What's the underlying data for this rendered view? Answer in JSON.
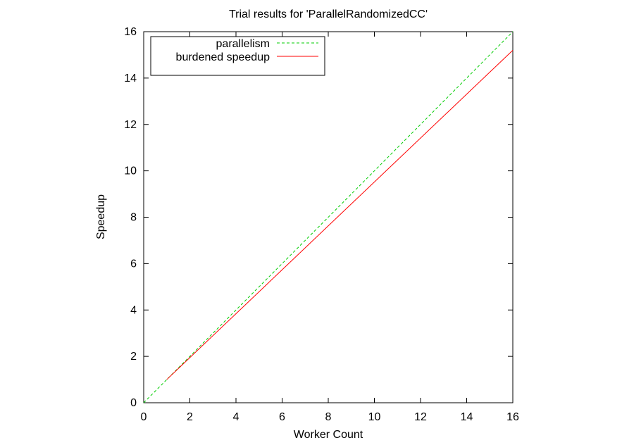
{
  "chart_data": {
    "type": "line",
    "title": "Trial results for 'ParallelRandomizedCC'",
    "xlabel": "Worker Count",
    "ylabel": "Speedup",
    "xlim": [
      0,
      16
    ],
    "ylim": [
      0,
      16
    ],
    "xticks": [
      0,
      2,
      4,
      6,
      8,
      10,
      12,
      14,
      16
    ],
    "yticks": [
      0,
      2,
      4,
      6,
      8,
      10,
      12,
      14,
      16
    ],
    "grid": false,
    "legend_position": "top-left",
    "series": [
      {
        "name": "parallelism",
        "color": "#00cc00",
        "dash": true,
        "x": [
          0,
          16
        ],
        "y": [
          0,
          16
        ]
      },
      {
        "name": "burdened speedup",
        "color": "#ff0000",
        "dash": false,
        "x": [
          1,
          16
        ],
        "y": [
          1,
          15.2
        ]
      }
    ]
  }
}
